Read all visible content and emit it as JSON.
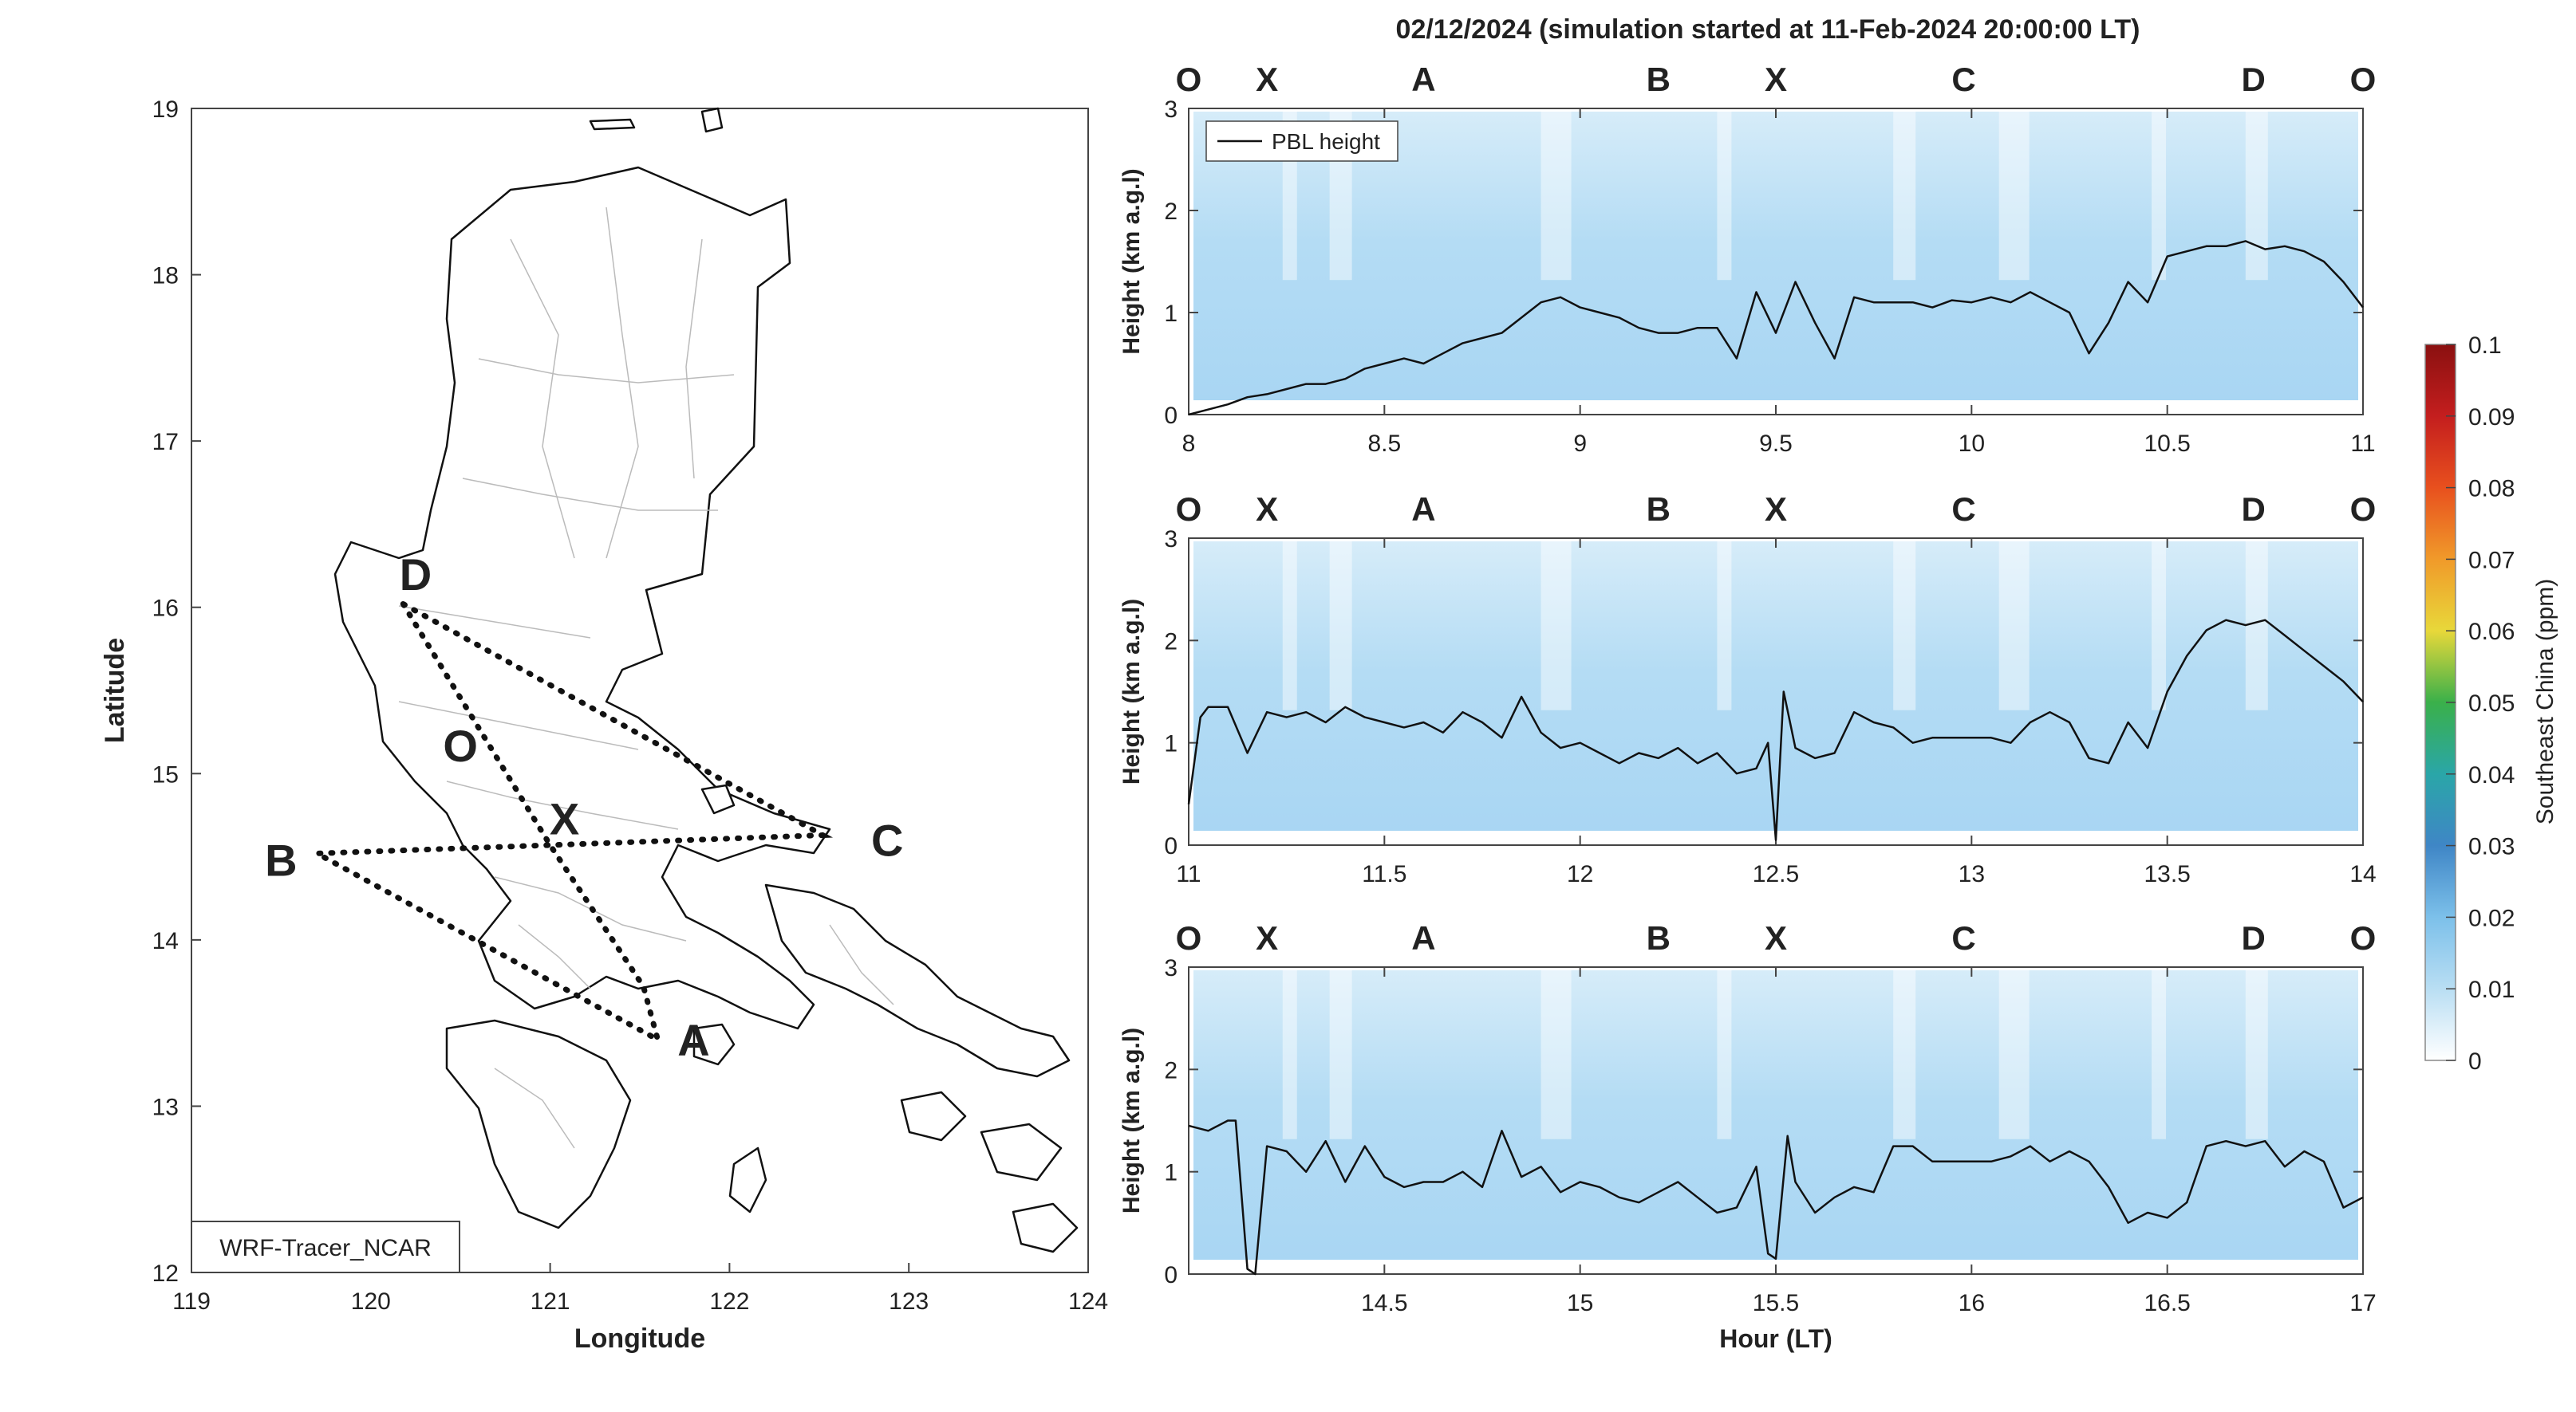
{
  "figure": {
    "title": "02/12/2024 (simulation started at 11-Feb-2024 20:00:00 LT)"
  },
  "chart_data": [
    {
      "type": "map",
      "xlabel": "Longitude",
      "ylabel": "Latitude",
      "xlim": [
        119,
        124
      ],
      "ylim": [
        12,
        19
      ],
      "xticks": [
        119,
        120,
        121,
        122,
        123,
        124
      ],
      "yticks": [
        12,
        13,
        14,
        15,
        16,
        17,
        18,
        19
      ],
      "model_label": "WRF-Tracer_NCAR",
      "sites": [
        {
          "name": "D",
          "lon": 120.25,
          "lat": 16.2,
          "color": "#7a2e8e"
        },
        {
          "name": "O",
          "lon": 120.5,
          "lat": 15.17,
          "color": "#111111"
        },
        {
          "name": "X",
          "lon": 121.08,
          "lat": 14.73,
          "color": "#a3142e"
        },
        {
          "name": "C",
          "lon": 122.88,
          "lat": 14.6,
          "color": "#4ab8e8"
        },
        {
          "name": "B",
          "lon": 119.5,
          "lat": 14.48,
          "color": "#6aaa2c"
        },
        {
          "name": "A",
          "lon": 121.8,
          "lat": 13.4,
          "color": "#f0a81c"
        }
      ],
      "routes": [
        [
          [
            120.18,
            16.02
          ],
          [
            121.0,
            14.57
          ],
          [
            121.52,
            13.72
          ],
          [
            121.6,
            13.4
          ],
          [
            119.7,
            14.52
          ],
          [
            121.0,
            14.57
          ],
          [
            122.52,
            14.63
          ],
          [
            120.18,
            16.02
          ]
        ]
      ]
    },
    {
      "type": "heatmap",
      "xlim": [
        8,
        11
      ],
      "ylim": [
        0,
        3
      ],
      "xticks": [
        8,
        8.5,
        9,
        9.5,
        10,
        10.5,
        11
      ],
      "yticks": [
        0,
        1,
        2,
        3
      ],
      "ylabel": "Height (km a.g.l)",
      "legend": [
        "PBL height"
      ],
      "site_markers": [
        {
          "name": "O",
          "x": 8.0
        },
        {
          "name": "X",
          "x": 8.2
        },
        {
          "name": "A",
          "x": 8.6
        },
        {
          "name": "B",
          "x": 9.2
        },
        {
          "name": "X",
          "x": 9.5
        },
        {
          "name": "C",
          "x": 9.98
        },
        {
          "name": "D",
          "x": 10.72
        },
        {
          "name": "O",
          "x": 11.0
        }
      ],
      "series": [
        {
          "name": "PBL height",
          "x": [
            8.0,
            8.1,
            8.15,
            8.2,
            8.25,
            8.3,
            8.35,
            8.4,
            8.45,
            8.5,
            8.55,
            8.6,
            8.65,
            8.7,
            8.75,
            8.8,
            8.85,
            8.9,
            8.95,
            9.0,
            9.05,
            9.1,
            9.15,
            9.2,
            9.25,
            9.3,
            9.35,
            9.4,
            9.45,
            9.5,
            9.55,
            9.6,
            9.65,
            9.7,
            9.75,
            9.8,
            9.85,
            9.9,
            9.95,
            10.0,
            10.05,
            10.1,
            10.15,
            10.2,
            10.25,
            10.3,
            10.35,
            10.4,
            10.45,
            10.5,
            10.55,
            10.6,
            10.65,
            10.7,
            10.75,
            10.8,
            10.85,
            10.9,
            10.95,
            11.0
          ],
          "values": [
            0.0,
            0.1,
            0.17,
            0.2,
            0.25,
            0.3,
            0.3,
            0.35,
            0.45,
            0.5,
            0.55,
            0.5,
            0.6,
            0.7,
            0.75,
            0.8,
            0.95,
            1.1,
            1.15,
            1.05,
            1.0,
            0.95,
            0.85,
            0.8,
            0.8,
            0.85,
            0.85,
            0.55,
            1.2,
            0.8,
            1.3,
            0.9,
            0.55,
            1.15,
            1.1,
            1.1,
            1.1,
            1.05,
            1.12,
            1.1,
            1.15,
            1.1,
            1.2,
            1.1,
            1.0,
            0.6,
            0.9,
            1.3,
            1.1,
            1.55,
            1.6,
            1.65,
            1.65,
            1.7,
            1.62,
            1.65,
            1.6,
            1.5,
            1.3,
            1.05
          ]
        }
      ]
    },
    {
      "type": "heatmap",
      "xlim": [
        11,
        14
      ],
      "ylim": [
        0,
        3
      ],
      "xticks": [
        11,
        11.5,
        12,
        12.5,
        13,
        13.5,
        14
      ],
      "yticks": [
        0,
        1,
        2,
        3
      ],
      "ylabel": "Height (km a.g.l)",
      "site_markers": [
        {
          "name": "O",
          "x": 11.0
        },
        {
          "name": "X",
          "x": 11.2
        },
        {
          "name": "A",
          "x": 11.6
        },
        {
          "name": "B",
          "x": 12.2
        },
        {
          "name": "X",
          "x": 12.5
        },
        {
          "name": "C",
          "x": 12.98
        },
        {
          "name": "D",
          "x": 13.72
        },
        {
          "name": "O",
          "x": 14.0
        }
      ],
      "series": [
        {
          "name": "PBL height",
          "x": [
            11.0,
            11.03,
            11.05,
            11.1,
            11.15,
            11.2,
            11.25,
            11.3,
            11.35,
            11.4,
            11.45,
            11.5,
            11.55,
            11.6,
            11.65,
            11.7,
            11.75,
            11.8,
            11.85,
            11.9,
            11.95,
            12.0,
            12.05,
            12.1,
            12.15,
            12.2,
            12.25,
            12.3,
            12.35,
            12.4,
            12.45,
            12.48,
            12.5,
            12.52,
            12.55,
            12.6,
            12.65,
            12.7,
            12.75,
            12.8,
            12.85,
            12.9,
            12.95,
            13.0,
            13.05,
            13.1,
            13.15,
            13.2,
            13.25,
            13.3,
            13.35,
            13.4,
            13.45,
            13.5,
            13.55,
            13.6,
            13.65,
            13.7,
            13.75,
            13.8,
            13.85,
            13.9,
            13.95,
            14.0
          ],
          "values": [
            0.4,
            1.25,
            1.35,
            1.35,
            0.9,
            1.3,
            1.25,
            1.3,
            1.2,
            1.35,
            1.25,
            1.2,
            1.15,
            1.2,
            1.1,
            1.3,
            1.2,
            1.05,
            1.45,
            1.1,
            0.95,
            1.0,
            0.9,
            0.8,
            0.9,
            0.85,
            0.95,
            0.8,
            0.9,
            0.7,
            0.75,
            1.0,
            0.05,
            1.5,
            0.95,
            0.85,
            0.9,
            1.3,
            1.2,
            1.15,
            1.0,
            1.05,
            1.05,
            1.05,
            1.05,
            1.0,
            1.2,
            1.3,
            1.2,
            0.85,
            0.8,
            1.2,
            0.95,
            1.5,
            1.85,
            2.1,
            2.2,
            2.15,
            2.2,
            2.05,
            1.9,
            1.75,
            1.6,
            1.4
          ]
        }
      ]
    },
    {
      "type": "heatmap",
      "xlim": [
        14,
        17
      ],
      "ylim": [
        0,
        3
      ],
      "xticks": [
        14.5,
        15,
        15.5,
        16,
        16.5,
        17
      ],
      "yticks": [
        0,
        1,
        2,
        3
      ],
      "xlabel": "Hour (LT)",
      "ylabel": "Height (km a.g.l)",
      "site_markers": [
        {
          "name": "O",
          "x": 14.0
        },
        {
          "name": "X",
          "x": 14.2
        },
        {
          "name": "A",
          "x": 14.6
        },
        {
          "name": "B",
          "x": 15.2
        },
        {
          "name": "X",
          "x": 15.5
        },
        {
          "name": "C",
          "x": 15.98
        },
        {
          "name": "D",
          "x": 16.72
        },
        {
          "name": "O",
          "x": 17.0
        }
      ],
      "series": [
        {
          "name": "PBL height",
          "x": [
            14.0,
            14.05,
            14.1,
            14.12,
            14.15,
            14.17,
            14.2,
            14.25,
            14.3,
            14.35,
            14.4,
            14.45,
            14.5,
            14.55,
            14.6,
            14.65,
            14.7,
            14.75,
            14.8,
            14.85,
            14.9,
            14.95,
            15.0,
            15.05,
            15.1,
            15.15,
            15.2,
            15.25,
            15.3,
            15.35,
            15.4,
            15.45,
            15.48,
            15.5,
            15.53,
            15.55,
            15.6,
            15.65,
            15.7,
            15.75,
            15.8,
            15.85,
            15.9,
            15.95,
            16.0,
            16.05,
            16.1,
            16.15,
            16.2,
            16.25,
            16.3,
            16.35,
            16.4,
            16.45,
            16.5,
            16.55,
            16.6,
            16.65,
            16.7,
            16.75,
            16.8,
            16.85,
            16.9,
            16.95,
            17.0
          ],
          "values": [
            1.45,
            1.4,
            1.5,
            1.5,
            0.05,
            0.0,
            1.25,
            1.2,
            1.0,
            1.3,
            0.9,
            1.25,
            0.95,
            0.85,
            0.9,
            0.9,
            1.0,
            0.85,
            1.4,
            0.95,
            1.05,
            0.8,
            0.9,
            0.85,
            0.75,
            0.7,
            0.8,
            0.9,
            0.75,
            0.6,
            0.65,
            1.05,
            0.2,
            0.15,
            1.35,
            0.9,
            0.6,
            0.75,
            0.85,
            0.8,
            1.25,
            1.25,
            1.1,
            1.1,
            1.1,
            1.1,
            1.15,
            1.25,
            1.1,
            1.2,
            1.1,
            0.85,
            0.5,
            0.6,
            0.55,
            0.7,
            1.25,
            1.3,
            1.25,
            1.3,
            1.05,
            1.2,
            1.1,
            0.65,
            0.75
          ]
        }
      ]
    }
  ],
  "colorbar": {
    "label": "Southeast China (ppm)",
    "ticks": [
      0,
      0.01,
      0.02,
      0.03,
      0.04,
      0.05,
      0.06,
      0.07,
      0.08,
      0.09,
      0.1
    ],
    "range": [
      0,
      0.1
    ]
  },
  "colors": {
    "O": "#111111",
    "X": "#a3142e",
    "A": "#f0a81c",
    "B": "#6aaa2c",
    "C": "#4ab8e8",
    "D": "#7a2e8e"
  }
}
